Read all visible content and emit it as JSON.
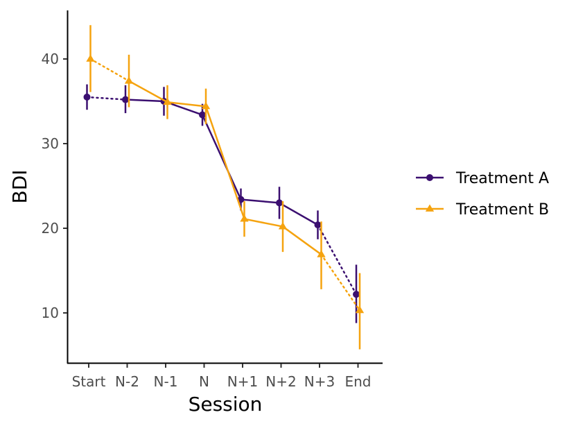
{
  "chart_data": {
    "type": "line",
    "xlabel": "Session",
    "ylabel": "BDI",
    "categories": [
      "Start",
      "N-2",
      "N-1",
      "N",
      "N+1",
      "N+2",
      "N+3",
      "End"
    ],
    "ylim": [
      4,
      45.5
    ],
    "yticks": [
      10,
      20,
      30,
      40
    ],
    "grid": false,
    "legend_position": "right",
    "dotted_segments": [
      "Start-N-2",
      "N+3-End"
    ],
    "series": [
      {
        "name": "Treatment A",
        "color": "#3b0f70",
        "marker": "circle",
        "values": [
          35.5,
          35.2,
          35.0,
          33.4,
          23.4,
          23.0,
          20.4,
          12.2
        ],
        "err_low": [
          34.0,
          33.6,
          33.3,
          32.1,
          22.1,
          21.1,
          18.7,
          8.8
        ],
        "err_high": [
          37.0,
          36.9,
          36.7,
          34.7,
          24.7,
          24.9,
          22.1,
          15.7
        ]
      },
      {
        "name": "Treatment B",
        "color": "#f5a30f",
        "marker": "triangle",
        "values": [
          40.0,
          37.4,
          34.9,
          34.4,
          21.1,
          20.2,
          16.9,
          10.3
        ],
        "err_low": [
          36.1,
          34.3,
          32.9,
          32.3,
          19.0,
          17.2,
          12.8,
          5.7
        ],
        "err_high": [
          44.0,
          40.5,
          36.9,
          36.5,
          23.2,
          23.2,
          20.8,
          14.7
        ]
      }
    ]
  }
}
